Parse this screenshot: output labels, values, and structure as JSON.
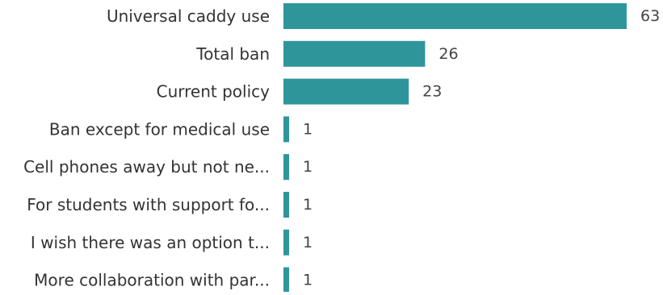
{
  "chart_data": {
    "type": "bar",
    "orientation": "horizontal",
    "categories": [
      "Universal caddy use",
      "Total ban",
      "Current policy",
      "Ban except for medical use",
      "Cell phones away but not ne...",
      "For students with support fo...",
      "I wish there was an option t...",
      "More collaboration with par..."
    ],
    "values": [
      63,
      26,
      23,
      1,
      1,
      1,
      1,
      1
    ],
    "xlim": [
      0,
      63
    ],
    "grid": false,
    "legend": "none",
    "colors": {
      "bar": "#2e959b",
      "label": "#333333",
      "value": "#444444"
    }
  }
}
